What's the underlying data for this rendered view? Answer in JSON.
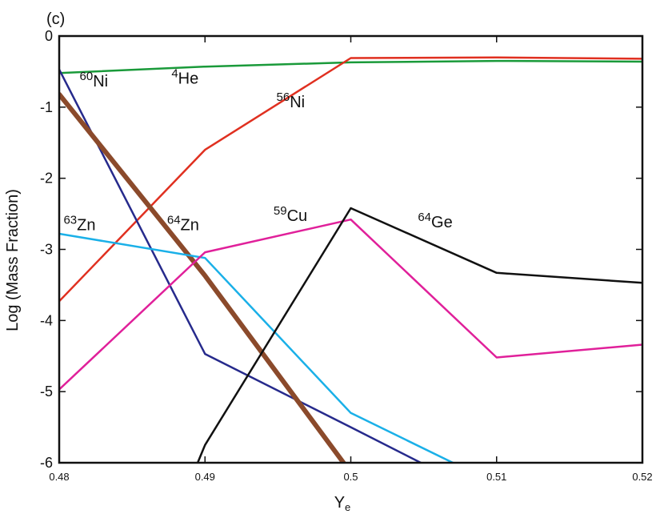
{
  "chart_data": {
    "type": "line",
    "panel_label": "(c)",
    "xlabel_main": "Y",
    "xlabel_sub": "e",
    "ylabel": "Log (Mass Fraction)",
    "xlim": [
      0.48,
      0.52
    ],
    "ylim": [
      -6,
      0
    ],
    "x_ticks": [
      {
        "value": 0.48,
        "label": "0.48"
      },
      {
        "value": 0.49,
        "label": "0.49"
      },
      {
        "value": 0.5,
        "label": "0.5"
      },
      {
        "value": 0.51,
        "label": "0.51"
      },
      {
        "value": 0.52,
        "label": "0.52"
      }
    ],
    "y_ticks": [
      {
        "value": 0,
        "label": "0"
      },
      {
        "value": -1,
        "label": "-1"
      },
      {
        "value": -2,
        "label": "-2"
      },
      {
        "value": -3,
        "label": "-3"
      },
      {
        "value": -4,
        "label": "-4"
      },
      {
        "value": -5,
        "label": "-5"
      },
      {
        "value": -6,
        "label": "-6"
      }
    ],
    "series": [
      {
        "name": "4He",
        "mass": "4",
        "element": "He",
        "color": "#1a9a3a",
        "width": 2.5,
        "x": [
          0.48,
          0.49,
          0.5,
          0.51,
          0.52
        ],
        "y": [
          -0.52,
          -0.43,
          -0.37,
          -0.35,
          -0.36
        ]
      },
      {
        "name": "56Ni",
        "mass": "56",
        "element": "Ni",
        "color": "#e03020",
        "width": 2.5,
        "x": [
          0.48,
          0.49,
          0.5,
          0.51,
          0.52
        ],
        "y": [
          -3.73,
          -1.6,
          -0.31,
          -0.3,
          -0.32
        ]
      },
      {
        "name": "60Ni",
        "mass": "60",
        "element": "Ni",
        "color": "#262a8c",
        "width": 2.5,
        "x": [
          0.48,
          0.49,
          0.5,
          0.5048
        ],
        "y": [
          -0.47,
          -4.47,
          -5.5,
          -6.0
        ]
      },
      {
        "name": "64Zn",
        "mass": "64",
        "element": "Zn",
        "color": "#8b4a2b",
        "width": 6,
        "x": [
          0.48,
          0.49,
          0.4995
        ],
        "y": [
          -0.82,
          -3.37,
          -6.0
        ]
      },
      {
        "name": "63Zn",
        "mass": "63",
        "element": "Zn",
        "color": "#1ab0e8",
        "width": 2.5,
        "x": [
          0.48,
          0.49,
          0.5,
          0.507
        ],
        "y": [
          -2.78,
          -3.12,
          -5.3,
          -6.0
        ]
      },
      {
        "name": "59Cu",
        "mass": "59",
        "element": "Cu",
        "color": "#e0209a",
        "width": 2.5,
        "x": [
          0.48,
          0.49,
          0.5,
          0.51,
          0.52
        ],
        "y": [
          -4.97,
          -3.04,
          -2.58,
          -4.52,
          -4.34
        ]
      },
      {
        "name": "64Ge",
        "mass": "64",
        "element": "Ge",
        "color": "#111111",
        "width": 2.5,
        "x": [
          0.4895,
          0.49,
          0.5,
          0.51,
          0.52
        ],
        "y": [
          -6.0,
          -5.75,
          -2.42,
          -3.33,
          -3.47
        ]
      }
    ],
    "annotations": [
      {
        "key": "60Ni",
        "mass": "60",
        "element": "Ni",
        "x": 0.4814,
        "y": -0.71
      },
      {
        "key": "4He",
        "mass": "4",
        "element": "He",
        "x": 0.4877,
        "y": -0.67
      },
      {
        "key": "56Ni",
        "mass": "56",
        "element": "Ni",
        "x": 0.4949,
        "y": -1.0
      },
      {
        "key": "63Zn",
        "mass": "63",
        "element": "Zn",
        "x": 0.4803,
        "y": -2.73
      },
      {
        "key": "64Zn",
        "mass": "64",
        "element": "Zn",
        "x": 0.4874,
        "y": -2.73
      },
      {
        "key": "59Cu",
        "mass": "59",
        "element": "Cu",
        "x": 0.4947,
        "y": -2.6
      },
      {
        "key": "64Ge",
        "mass": "64",
        "element": "Ge",
        "x": 0.5046,
        "y": -2.69
      }
    ]
  }
}
